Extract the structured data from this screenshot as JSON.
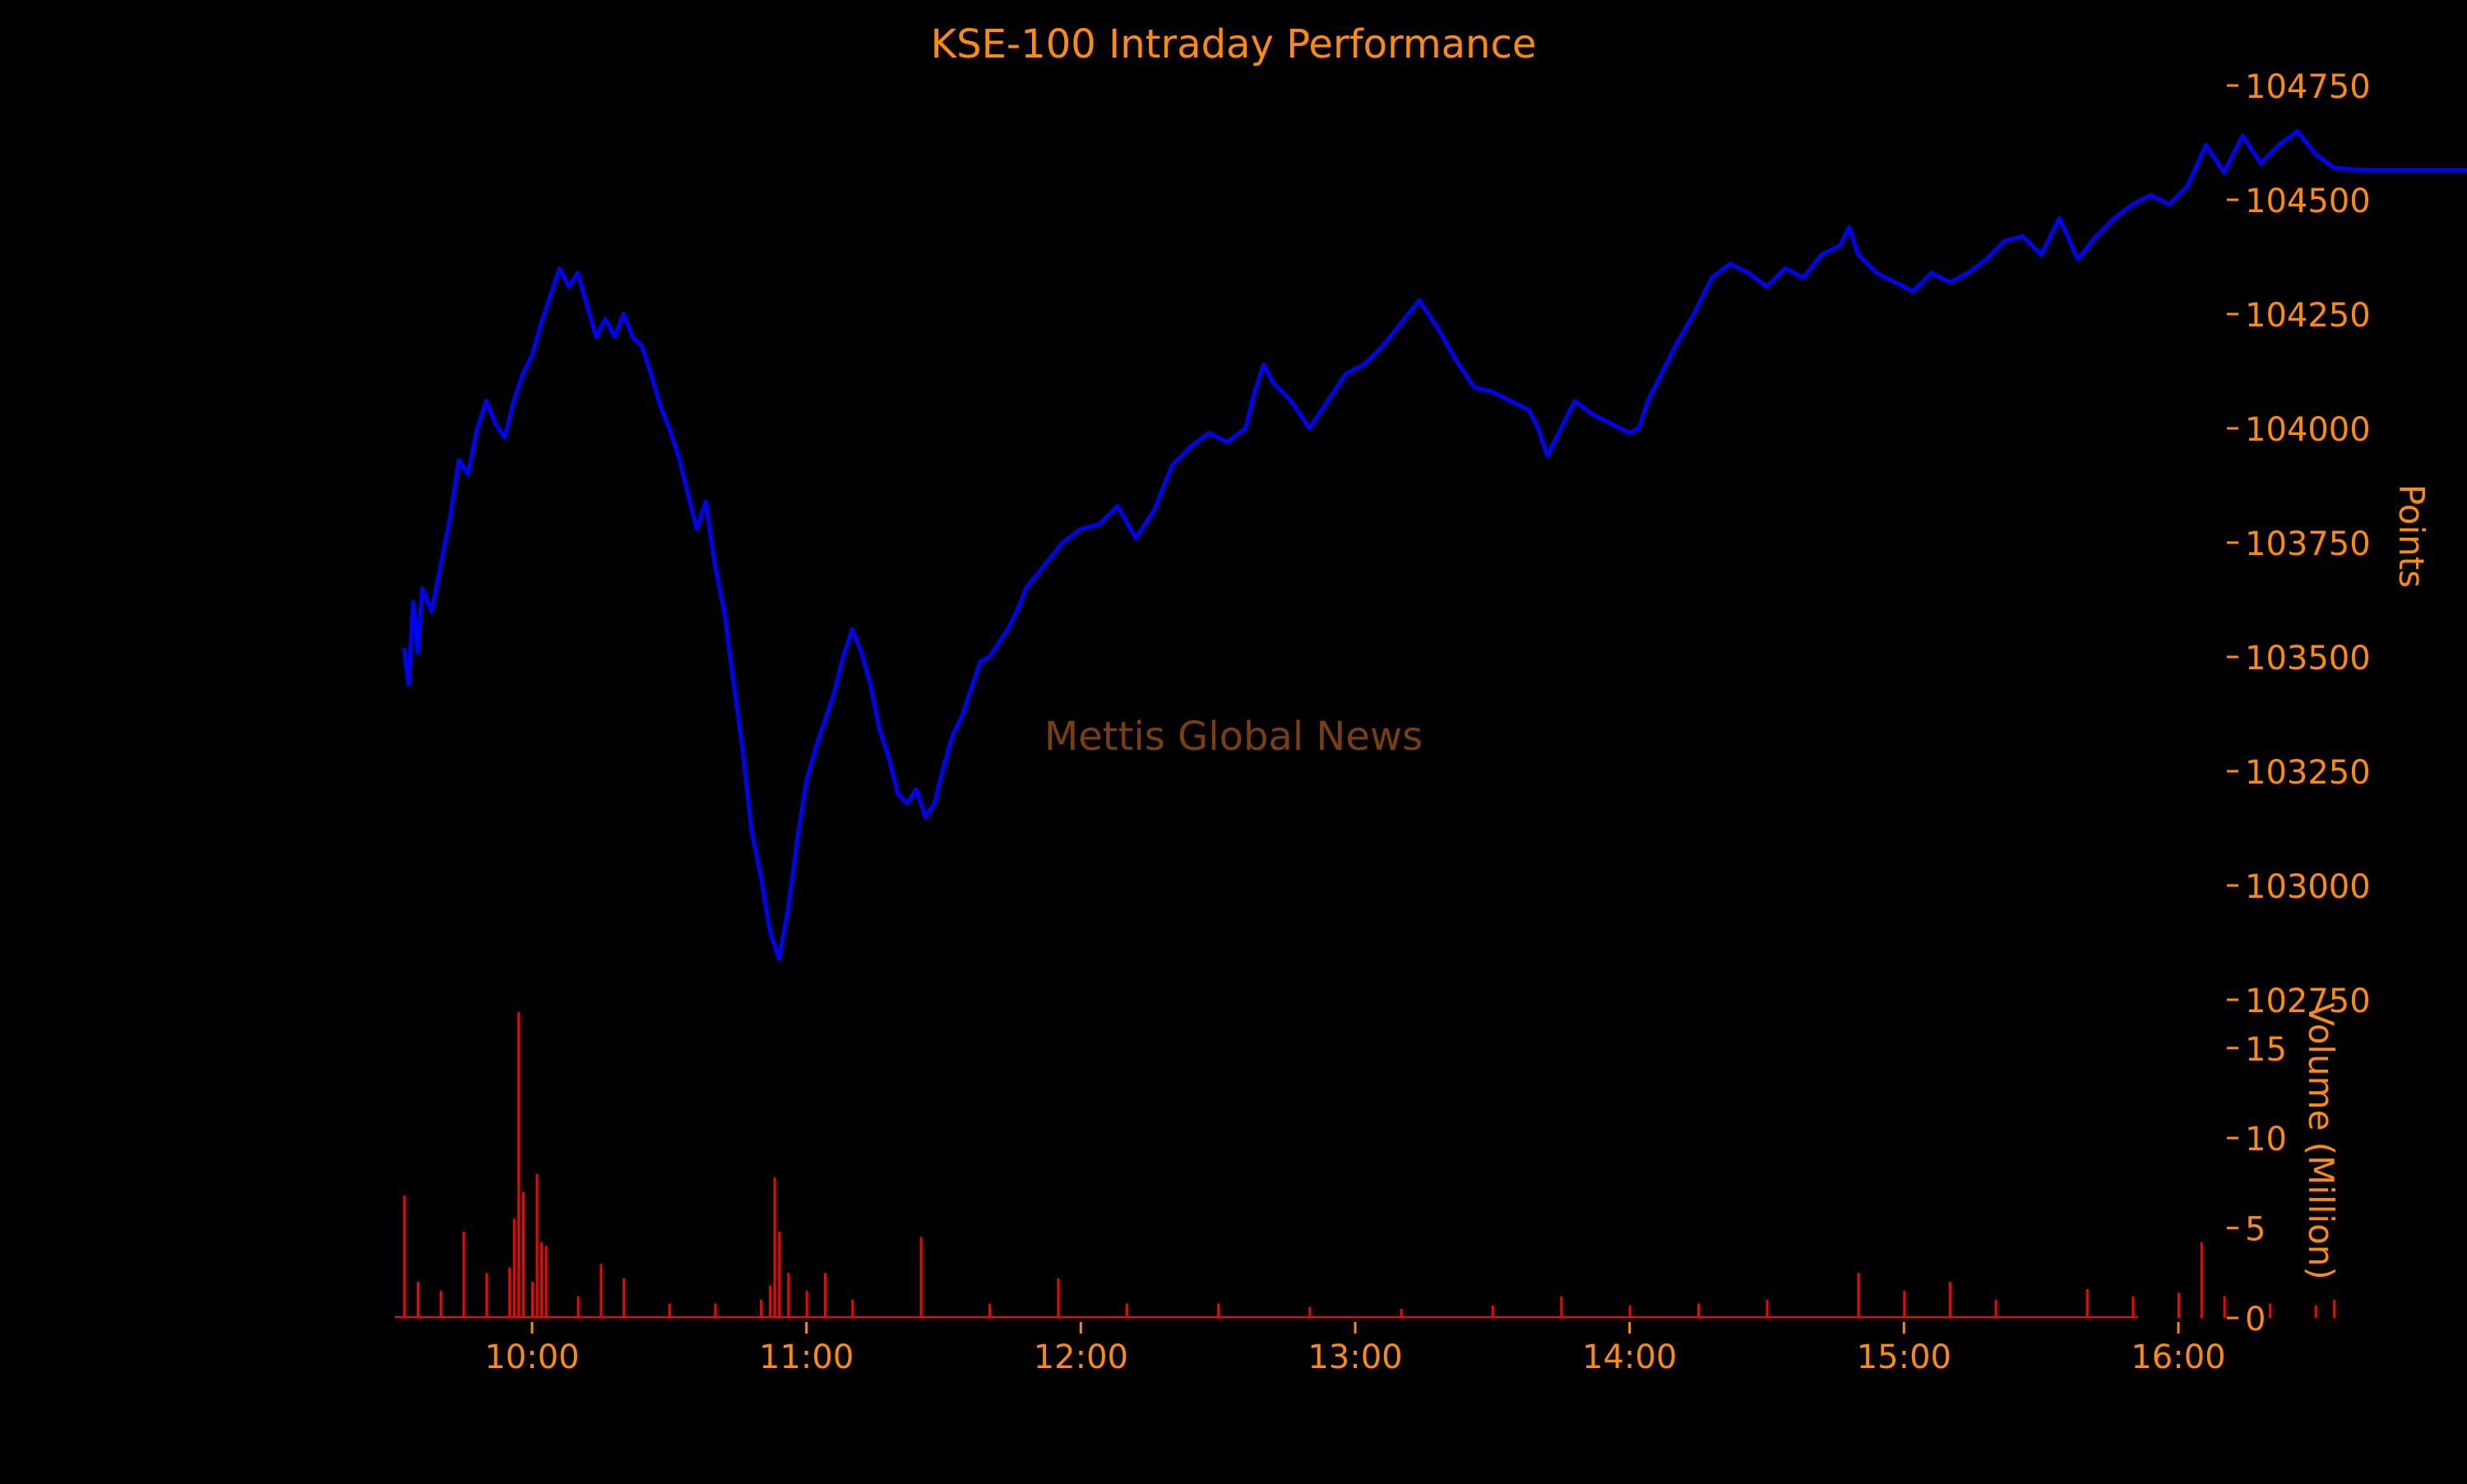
{
  "colors": {
    "background": "#000000",
    "text": "#ff8c00",
    "price_line": "#0000ff",
    "volume_bars": "#ff0000",
    "watermark": "#7a3f0a"
  },
  "chart_data": [
    {
      "type": "line",
      "title": "KSE-100 Intraday Performance",
      "watermark": "Mettis Global News",
      "ylabel": "Points",
      "y_axis_side": "right",
      "ylim": [
        102750,
        104750
      ],
      "yticks": [
        "102750",
        "103000",
        "103250",
        "103500",
        "103750",
        "104000",
        "104250",
        "104500",
        "104750"
      ],
      "grid": false,
      "series": [
        {
          "values": [
            [
              "09:32",
              103520
            ],
            [
              "09:33",
              103440
            ],
            [
              "09:34",
              103620
            ],
            [
              "09:35",
              103510
            ],
            [
              "09:36",
              103650
            ],
            [
              "09:38",
              103600
            ],
            [
              "09:40",
              103700
            ],
            [
              "09:42",
              103800
            ],
            [
              "09:44",
              103930
            ],
            [
              "09:46",
              103900
            ],
            [
              "09:48",
              104000
            ],
            [
              "09:50",
              104060
            ],
            [
              "09:52",
              104010
            ],
            [
              "09:54",
              103980
            ],
            [
              "09:56",
              104060
            ],
            [
              "09:58",
              104120
            ],
            [
              "10:00",
              104160
            ],
            [
              "10:02",
              104230
            ],
            [
              "10:04",
              104290
            ],
            [
              "10:06",
              104350
            ],
            [
              "10:08",
              104310
            ],
            [
              "10:10",
              104340
            ],
            [
              "10:12",
              104270
            ],
            [
              "10:14",
              104200
            ],
            [
              "10:16",
              104240
            ],
            [
              "10:18",
              104200
            ],
            [
              "10:20",
              104250
            ],
            [
              "10:22",
              104200
            ],
            [
              "10:24",
              104180
            ],
            [
              "10:26",
              104120
            ],
            [
              "10:28",
              104050
            ],
            [
              "10:30",
              104000
            ],
            [
              "10:32",
              103940
            ],
            [
              "10:34",
              103860
            ],
            [
              "10:36",
              103780
            ],
            [
              "10:38",
              103840
            ],
            [
              "10:40",
              103700
            ],
            [
              "10:42",
              103600
            ],
            [
              "10:44",
              103450
            ],
            [
              "10:46",
              103300
            ],
            [
              "10:48",
              103120
            ],
            [
              "10:50",
              103020
            ],
            [
              "10:52",
              102900
            ],
            [
              "10:54",
              102840
            ],
            [
              "10:56",
              102950
            ],
            [
              "10:58",
              103100
            ],
            [
              "11:00",
              103230
            ],
            [
              "11:02",
              103300
            ],
            [
              "11:04",
              103360
            ],
            [
              "11:06",
              103420
            ],
            [
              "11:08",
              103500
            ],
            [
              "11:10",
              103560
            ],
            [
              "11:12",
              103510
            ],
            [
              "11:14",
              103440
            ],
            [
              "11:16",
              103340
            ],
            [
              "11:18",
              103280
            ],
            [
              "11:20",
              103200
            ],
            [
              "11:22",
              103180
            ],
            [
              "11:24",
              103210
            ],
            [
              "11:26",
              103150
            ],
            [
              "11:28",
              103180
            ],
            [
              "11:30",
              103260
            ],
            [
              "11:32",
              103330
            ],
            [
              "11:34",
              103370
            ],
            [
              "11:36",
              103430
            ],
            [
              "11:38",
              103490
            ],
            [
              "11:40",
              103500
            ],
            [
              "11:42",
              103530
            ],
            [
              "11:44",
              103560
            ],
            [
              "11:46",
              103600
            ],
            [
              "11:48",
              103650
            ],
            [
              "11:52",
              103700
            ],
            [
              "11:56",
              103750
            ],
            [
              "12:00",
              103780
            ],
            [
              "12:04",
              103790
            ],
            [
              "12:08",
              103830
            ],
            [
              "12:12",
              103760
            ],
            [
              "12:16",
              103820
            ],
            [
              "12:18",
              103870
            ],
            [
              "12:20",
              103920
            ],
            [
              "12:24",
              103960
            ],
            [
              "12:28",
              103990
            ],
            [
              "12:32",
              103970
            ],
            [
              "12:36",
              104000
            ],
            [
              "12:38",
              104080
            ],
            [
              "12:40",
              104140
            ],
            [
              "12:42",
              104100
            ],
            [
              "12:46",
              104060
            ],
            [
              "12:50",
              104000
            ],
            [
              "12:54",
              104060
            ],
            [
              "12:58",
              104120
            ],
            [
              "13:02",
              104140
            ],
            [
              "13:06",
              104180
            ],
            [
              "13:10",
              104230
            ],
            [
              "13:14",
              104280
            ],
            [
              "13:18",
              104220
            ],
            [
              "13:22",
              104150
            ],
            [
              "13:26",
              104090
            ],
            [
              "13:30",
              104080
            ],
            [
              "13:34",
              104060
            ],
            [
              "13:38",
              104040
            ],
            [
              "13:40",
              104000
            ],
            [
              "13:42",
              103940
            ],
            [
              "13:44",
              103980
            ],
            [
              "13:48",
              104060
            ],
            [
              "13:52",
              104030
            ],
            [
              "13:56",
              104010
            ],
            [
              "14:00",
              103990
            ],
            [
              "14:02",
              104000
            ],
            [
              "14:04",
              104060
            ],
            [
              "14:06",
              104100
            ],
            [
              "14:10",
              104180
            ],
            [
              "14:14",
              104250
            ],
            [
              "14:18",
              104330
            ],
            [
              "14:22",
              104360
            ],
            [
              "14:26",
              104340
            ],
            [
              "14:30",
              104310
            ],
            [
              "14:34",
              104350
            ],
            [
              "14:38",
              104330
            ],
            [
              "14:42",
              104380
            ],
            [
              "14:46",
              104400
            ],
            [
              "14:48",
              104440
            ],
            [
              "14:50",
              104380
            ],
            [
              "14:54",
              104340
            ],
            [
              "14:58",
              104320
            ],
            [
              "15:02",
              104300
            ],
            [
              "15:06",
              104340
            ],
            [
              "15:10",
              104320
            ],
            [
              "15:14",
              104340
            ],
            [
              "15:18",
              104370
            ],
            [
              "15:22",
              104410
            ],
            [
              "15:26",
              104420
            ],
            [
              "15:30",
              104380
            ],
            [
              "15:34",
              104460
            ],
            [
              "15:38",
              104370
            ],
            [
              "15:42",
              104420
            ],
            [
              "15:46",
              104460
            ],
            [
              "15:50",
              104490
            ],
            [
              "15:54",
              104510
            ],
            [
              "15:58",
              104490
            ],
            [
              "16:02",
              104530
            ],
            [
              "16:06",
              104620
            ],
            [
              "16:10",
              104560
            ],
            [
              "16:14",
              104640
            ],
            [
              "16:18",
              104580
            ],
            [
              "16:22",
              104620
            ],
            [
              "16:26",
              104650
            ],
            [
              "16:30",
              104600
            ],
            [
              "16:34",
              104570
            ],
            [
              "16:40",
              104565
            ],
            [
              "16:50",
              104565
            ],
            [
              "17:00",
              104565
            ],
            [
              "17:05",
              104565
            ]
          ]
        }
      ]
    },
    {
      "type": "bar",
      "ylabel": "Volume (Million)",
      "y_axis_side": "right",
      "ylim": [
        0,
        17
      ],
      "yticks": [
        "0",
        "5",
        "10",
        "15"
      ],
      "xticks": [
        "10:00",
        "11:00",
        "12:00",
        "13:00",
        "14:00",
        "15:00",
        "16:00"
      ],
      "xlim": [
        "09:20",
        "16:20"
      ],
      "grid": false,
      "series": [
        {
          "values": [
            [
              "09:32",
              6.8
            ],
            [
              "09:35",
              2.0
            ],
            [
              "09:40",
              1.5
            ],
            [
              "09:45",
              4.8
            ],
            [
              "09:50",
              2.5
            ],
            [
              "09:55",
              2.8
            ],
            [
              "09:56",
              5.5
            ],
            [
              "09:57",
              17.0
            ],
            [
              "09:58",
              7.0
            ],
            [
              "10:00",
              2.0
            ],
            [
              "10:01",
              8.0
            ],
            [
              "10:02",
              4.2
            ],
            [
              "10:03",
              4.0
            ],
            [
              "10:10",
              1.2
            ],
            [
              "10:15",
              3.0
            ],
            [
              "10:20",
              2.2
            ],
            [
              "10:30",
              0.8
            ],
            [
              "10:40",
              0.8
            ],
            [
              "10:50",
              1.0
            ],
            [
              "10:52",
              1.8
            ],
            [
              "10:53",
              7.8
            ],
            [
              "10:54",
              4.8
            ],
            [
              "10:56",
              2.5
            ],
            [
              "11:00",
              1.5
            ],
            [
              "11:04",
              2.5
            ],
            [
              "11:10",
              1.0
            ],
            [
              "11:25",
              4.5
            ],
            [
              "11:40",
              0.8
            ],
            [
              "11:55",
              2.2
            ],
            [
              "12:10",
              0.8
            ],
            [
              "12:30",
              0.8
            ],
            [
              "12:50",
              0.6
            ],
            [
              "13:10",
              0.5
            ],
            [
              "13:30",
              0.7
            ],
            [
              "13:45",
              1.2
            ],
            [
              "14:00",
              0.7
            ],
            [
              "14:15",
              0.8
            ],
            [
              "14:30",
              1.0
            ],
            [
              "14:50",
              2.5
            ],
            [
              "15:00",
              1.5
            ],
            [
              "15:10",
              2.0
            ],
            [
              "15:20",
              1.0
            ],
            [
              "15:40",
              1.6
            ],
            [
              "15:50",
              1.2
            ],
            [
              "16:00",
              1.4
            ],
            [
              "16:05",
              4.2
            ],
            [
              "16:10",
              1.2
            ],
            [
              "16:20",
              0.8
            ],
            [
              "16:30",
              0.7
            ],
            [
              "16:34",
              1.0
            ]
          ]
        }
      ]
    }
  ]
}
